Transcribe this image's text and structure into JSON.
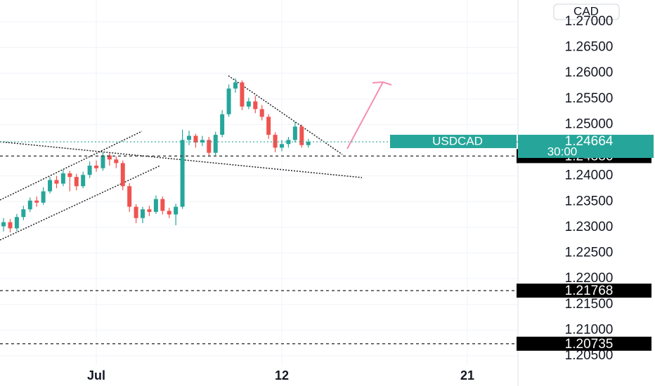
{
  "chart_data": {
    "type": "candlestick",
    "currency_label": "CAD",
    "symbol": "USDCAD",
    "countdown": "30:00",
    "last_price": {
      "value": 1.24664,
      "label": "1.24664"
    },
    "levels": [
      {
        "value": 1.24386,
        "label": "1.24386"
      },
      {
        "value": 1.21768,
        "label": "1.21768"
      },
      {
        "value": 1.20735,
        "label": "1.20735"
      }
    ],
    "up_color": "#26a69a",
    "down_color": "#ef5350",
    "grid": true,
    "xlim": [
      -3.634,
      15.91
    ],
    "ylim": [
      1.20322,
      1.27423
    ],
    "xticks": [
      {
        "value": 0,
        "label": "Jul"
      },
      {
        "value": 7,
        "label": "12"
      },
      {
        "value": 14,
        "label": "21"
      }
    ],
    "yticks": [
      {
        "value": 1.27,
        "label": "1.27000"
      },
      {
        "value": 1.265,
        "label": "1.26500"
      },
      {
        "value": 1.26,
        "label": "1.26000"
      },
      {
        "value": 1.255,
        "label": "1.25500"
      },
      {
        "value": 1.25,
        "label": "1.25000"
      },
      {
        "value": 1.24,
        "label": "1.24000"
      },
      {
        "value": 1.235,
        "label": "1.23500"
      },
      {
        "value": 1.23,
        "label": "1.23000"
      },
      {
        "value": 1.225,
        "label": "1.22500"
      },
      {
        "value": 1.22,
        "label": "1.22000"
      },
      {
        "value": 1.215,
        "label": "1.21500"
      },
      {
        "value": 1.21,
        "label": "1.21000"
      },
      {
        "value": 1.205,
        "label": "1.20500"
      }
    ],
    "x": [
      -3.5,
      -3.25,
      -3,
      -2.75,
      -2.5,
      -2.25,
      -2,
      -1.75,
      -1.5,
      -1.25,
      -1,
      -0.75,
      -0.5,
      -0.25,
      0,
      0.25,
      0.5,
      0.75,
      1,
      1.25,
      1.5,
      1.75,
      2,
      2.25,
      2.5,
      2.75,
      3,
      3.25,
      3.5,
      3.75,
      4,
      4.25,
      4.5,
      4.75,
      5,
      5.25,
      5.5,
      5.75,
      6,
      6.25,
      6.5,
      6.75,
      7,
      7.25,
      7.5,
      7.75,
      8
    ],
    "open": [
      1.2302,
      1.231,
      1.2298,
      1.232,
      1.2335,
      1.2352,
      1.2348,
      1.237,
      1.2392,
      1.2385,
      1.2405,
      1.2398,
      1.238,
      1.2402,
      1.242,
      1.2415,
      1.244,
      1.2432,
      1.2425,
      1.238,
      1.234,
      1.2318,
      1.2335,
      1.233,
      1.2355,
      1.2332,
      1.2325,
      1.234,
      1.247,
      1.2478,
      1.2465,
      1.247,
      1.2445,
      1.248,
      1.252,
      1.257,
      1.2582,
      1.2535,
      1.2545,
      1.253,
      1.2515,
      1.248,
      1.2455,
      1.2462,
      1.247,
      1.2496,
      1.246
    ],
    "high": [
      1.2318,
      1.2316,
      1.2326,
      1.2342,
      1.2358,
      1.236,
      1.2378,
      1.2398,
      1.24,
      1.2412,
      1.241,
      1.2404,
      1.2408,
      1.2428,
      1.243,
      1.2446,
      1.2444,
      1.2438,
      1.243,
      1.2386,
      1.2345,
      1.234,
      1.2342,
      1.2362,
      1.236,
      1.2338,
      1.2346,
      1.249,
      1.2488,
      1.2482,
      1.2478,
      1.2476,
      1.2486,
      1.2528,
      1.2578,
      1.259,
      1.2586,
      1.2552,
      1.2556,
      1.2538,
      1.252,
      1.2485,
      1.247,
      1.2476,
      1.2505,
      1.25,
      1.2472
    ],
    "low": [
      1.2292,
      1.229,
      1.2292,
      1.2314,
      1.233,
      1.234,
      1.2344,
      1.2366,
      1.2376,
      1.238,
      1.237,
      1.2372,
      1.2376,
      1.2396,
      1.2408,
      1.241,
      1.242,
      1.2415,
      1.2372,
      1.233,
      1.2308,
      1.2308,
      1.2322,
      1.2326,
      1.2325,
      1.2318,
      1.2304,
      1.2336,
      1.246,
      1.2455,
      1.2458,
      1.2438,
      1.244,
      1.2475,
      1.2515,
      1.2562,
      1.2528,
      1.253,
      1.2522,
      1.2508,
      1.2472,
      1.2446,
      1.2448,
      1.2455,
      1.2465,
      1.2455,
      1.2455
    ],
    "close": [
      1.231,
      1.2298,
      1.232,
      1.2335,
      1.2352,
      1.2348,
      1.237,
      1.2392,
      1.2385,
      1.2405,
      1.2398,
      1.238,
      1.2402,
      1.242,
      1.2415,
      1.244,
      1.2432,
      1.2425,
      1.238,
      1.234,
      1.2318,
      1.2335,
      1.233,
      1.2355,
      1.2332,
      1.2325,
      1.234,
      1.247,
      1.2478,
      1.2465,
      1.247,
      1.2445,
      1.248,
      1.252,
      1.257,
      1.2582,
      1.2535,
      1.2545,
      1.253,
      1.2515,
      1.248,
      1.2455,
      1.2462,
      1.247,
      1.2496,
      1.246,
      1.24664
    ]
  }
}
